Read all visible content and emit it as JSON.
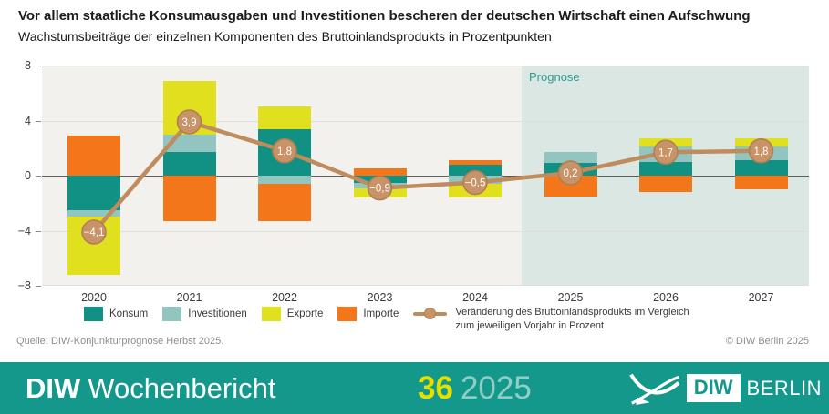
{
  "header": {
    "title": "Vor allem staatliche Konsumausgaben und Investitionen bescheren der deutschen Wirtschaft einen Aufschwung",
    "subtitle": "Wachstumsbeiträge der einzelnen Komponenten des Bruttoinlandsprodukts in Prozentpunkten"
  },
  "chart_data": {
    "type": "bar",
    "subtype": "stacked-bar-with-line",
    "categories": [
      "2020",
      "2021",
      "2022",
      "2023",
      "2024",
      "2025",
      "2026",
      "2027"
    ],
    "series": [
      {
        "name": "Konsum",
        "color": "#109184",
        "values": [
          -2.5,
          1.7,
          3.4,
          -0.5,
          0.8,
          0.9,
          1.0,
          1.1
        ]
      },
      {
        "name": "Investitionen",
        "color": "#92c5c0",
        "values": [
          -0.5,
          1.3,
          -0.6,
          -0.4,
          -0.6,
          0.8,
          1.1,
          1.0
        ]
      },
      {
        "name": "Exporte",
        "color": "#e0e01e",
        "values": [
          -4.2,
          3.9,
          1.6,
          -0.7,
          -1.0,
          0.0,
          0.6,
          0.6
        ]
      },
      {
        "name": "Importe",
        "color": "#f3761b",
        "values": [
          2.9,
          -3.3,
          -2.7,
          0.5,
          0.3,
          -1.5,
          -1.2,
          -1.0
        ]
      }
    ],
    "line": {
      "name": "Veränderung des Bruttoinlandsprodukts im Vergleich zum jeweiligen Vorjahr in Prozent",
      "color": "#c08c5e",
      "marker_fill": "#c79367",
      "marker_stroke": "#ad7f52",
      "values": [
        -4.1,
        3.9,
        1.8,
        -0.9,
        -0.5,
        0.2,
        1.7,
        1.8
      ],
      "labels": [
        "−4,1",
        "3,9",
        "1,8",
        "−0,9",
        "−0,5",
        "0,2",
        "1,7",
        "1,8"
      ]
    },
    "ylim": [
      -8,
      8
    ],
    "yticks": [
      {
        "v": 8,
        "label": "8"
      },
      {
        "v": 4,
        "label": "4"
      },
      {
        "v": 0,
        "label": "0"
      },
      {
        "v": -4,
        "label": "−4"
      },
      {
        "v": -8,
        "label": "−8"
      }
    ],
    "grid": true,
    "prognose": {
      "label": "Prognose",
      "from_index": 5
    }
  },
  "legend": {
    "line_desc_1": "Veränderung des Bruttoinlandsprodukts im Vergleich",
    "line_desc_2": "zum jeweiligen Vorjahr in Prozent"
  },
  "footer": {
    "source": "Quelle: DIW-Konjunkturprognose Herbst 2025.",
    "copyright": "© DIW Berlin 2025"
  },
  "banner": {
    "brand_bold": "DIW",
    "brand_rest": "Wochenbericht",
    "issue_number": "36",
    "issue_year": "2025",
    "logo_diw": "DIW",
    "logo_berlin": "BERLIN"
  },
  "colors": {
    "banner_bg": "#14988b",
    "plot_bg": "#f2f1ee",
    "prognose_bg": "#dae7e3",
    "prognose_text": "#2e9c93",
    "issue_number": "#e4e000",
    "issue_year": "#92cec6"
  }
}
